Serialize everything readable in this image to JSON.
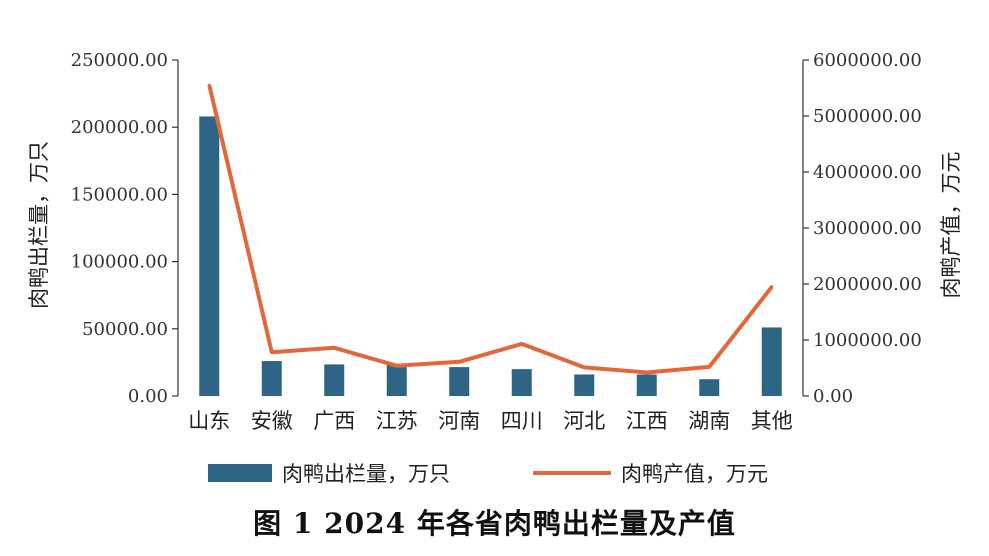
{
  "chart_data": {
    "type": "bar",
    "categories": [
      "山东",
      "安徽",
      "广西",
      "江苏",
      "河南",
      "四川",
      "河北",
      "江西",
      "湖南",
      "其他"
    ],
    "series": [
      {
        "name": "肉鸭出栏量，万只",
        "type": "bar",
        "axis": "left",
        "color": "#2e6584",
        "values": [
          208000,
          26000,
          23500,
          23000,
          21500,
          20000,
          16000,
          16000,
          12500,
          51000
        ]
      },
      {
        "name": "肉鸭产值，万元",
        "type": "line",
        "axis": "right",
        "color": "#e2683c",
        "values": [
          5550000,
          780000,
          860000,
          540000,
          610000,
          930000,
          510000,
          420000,
          520000,
          1950000
        ]
      }
    ],
    "ylabel_left": "肉鸭出栏量，万只",
    "ylabel_right": "肉鸭产值，万元",
    "ylim_left": [
      0,
      250000
    ],
    "ylim_right": [
      0,
      6000000
    ],
    "yticks_left": [
      "0.00",
      "50000.00",
      "100000.00",
      "150000.00",
      "200000.00",
      "250000.00"
    ],
    "yticks_right": [
      "0.00",
      "1000000.00",
      "2000000.00",
      "3000000.00",
      "4000000.00",
      "5000000.00",
      "6000000.00"
    ],
    "grid": false,
    "legend_position": "bottom"
  },
  "legend": {
    "bar_label": "肉鸭出栏量，万只",
    "line_label": "肉鸭产值，万元"
  },
  "caption": "图 1 2024 年各省肉鸭出栏量及产值"
}
